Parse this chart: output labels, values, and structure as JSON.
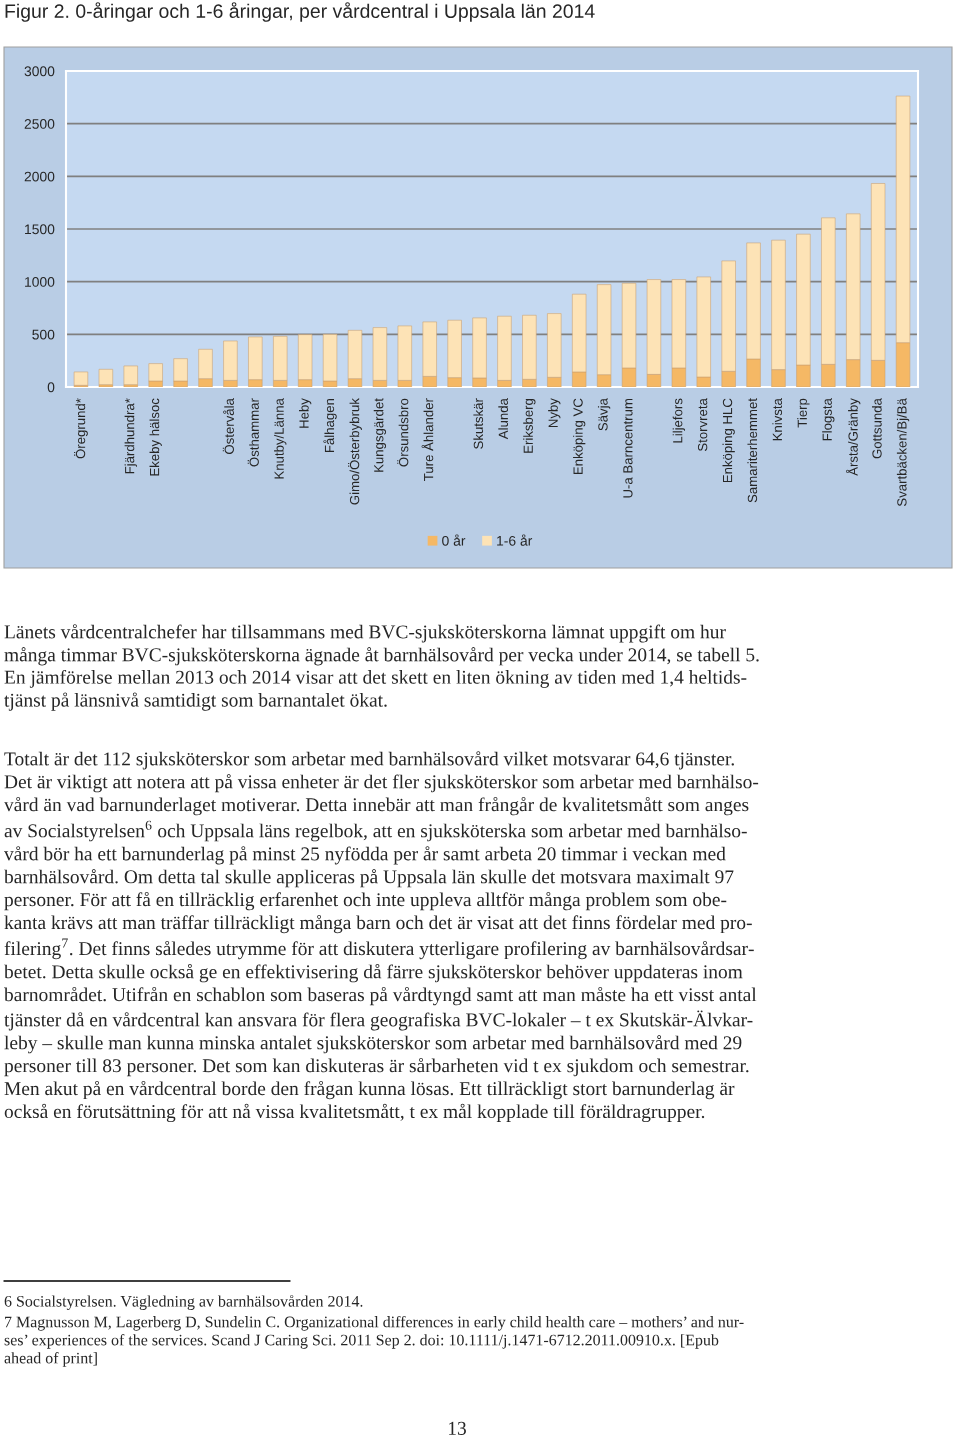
{
  "chart_data": {
    "type": "bar",
    "title": "Figur 2. 0-åringar och 1-6 åringar, per vårdcentral i Uppsala län 2014",
    "categories": [
      "Öregrund*",
      null,
      "Fjärdhundra*",
      "Ekeby hälsoc",
      null,
      null,
      "Östervåla",
      "Östhammar",
      "Knutby/Länna",
      "Heby",
      "Fålhagen",
      "Gimo/Österbybruk",
      "Kungsgärdet",
      "Örsundsbro",
      "Ture Åhlander",
      null,
      "Skutskär",
      "Alunda",
      "Eriksberg",
      "Nyby",
      "Enköping VC",
      "Sävja",
      "U-a Barncentrum",
      null,
      "Liljefors",
      "Storvreta",
      "Enköping HLC",
      "Samariterhemmet",
      "Knivsta",
      "Tierp",
      "Flogsta",
      "Årsta/Gränby",
      "Gottsunda",
      "Svartbäcken/Bj/Bä"
    ],
    "stacked": true,
    "series": [
      {
        "name": "0 år",
        "color": "#f5b865",
        "values": [
          16,
          22,
          22,
          57,
          57,
          79,
          63,
          70,
          63,
          70,
          57,
          79,
          63,
          63,
          101,
          89,
          86,
          63,
          73,
          92,
          143,
          117,
          181,
          120,
          181,
          95,
          149,
          266,
          165,
          209,
          215,
          260,
          253,
          421
        ]
      },
      {
        "name": "1-6 år",
        "color": "#fde3b6",
        "values": [
          127,
          146,
          178,
          165,
          212,
          279,
          374,
          405,
          418,
          427,
          443,
          459,
          501,
          517,
          517,
          545,
          570,
          609,
          608,
          605,
          738,
          855,
          804,
          900,
          839,
          950,
          1048,
          1102,
          1229,
          1242,
          1391,
          1384,
          1679,
          2341
        ]
      }
    ],
    "ylim": [
      0,
      3000
    ],
    "yticks": [
      0,
      500,
      1000,
      1500,
      2000,
      2500,
      3000
    ],
    "grid": "y",
    "legend": "bottom",
    "annotations": [
      "Länets vårdcentralchefer har tillsammans med BVC-sjuksköterskorna lämnat uppgift om hur\nmånga timmar BVC-sjuksköterskorna ägnade åt barnhälsovård per vecka under 2014, se tabell 5.\nEn jämförelse mellan 2013 och 2014 visar att det skett en liten ökning av tiden med 1,4 heltids-\ntjänst på länsnivå samtidigt som barnantalet ökat.",
      "Totalt är det 112 sjuksköterskor som arbetar med barnhälsovård vilket motsvarar 64,6 tjänster.\nDet är viktigt att notera att på vissa enheter är det fler sjuksköterskor som arbetar med barnhälso-\nvård än vad barnunderlaget motiverar. Detta innebär att man frångår de kvalitetsmått som anges\nav Socialstyrelsen$^{6}$ och Uppsala läns regelbok, att en sjuksköterska som arbetar med barnhälso-\nvård bör ha ett barnunderlag på minst 25 nyfödda per år samt arbeta 20 timmar i veckan med\nbarnhälsovård. Om detta tal skulle appliceras på Uppsala län skulle det motsvara maximalt 97\npersoner. För att få en tillräcklig erfarenhet och inte uppleva alltför många problem som obe-\nkanta krävs att man träffar tillräckligt många barn och det är visat att det finns fördelar med pro-\nfilering$^{7}$. Det finns således utrymme för att diskutera ytterligare profilering av barnhälsovårdsar-\nbetet. Detta skulle också ge en effektivisering då färre sjuksköterskor behöver uppdateras inom\nbarnområdet. Utifrån en schablon som baseras på vårdtyngd samt att man måste ha ett visst antal\ntjänster då en vårdcentral kan ansvara för flera geografiska BVC-lokaler – t ex Skutskär-Älvkar-\nleby – skulle man kunna minska antalet sjuksköterskor som arbetar med barnhälsovård med 29\npersoner till 83 personer. Det som kan diskuteras är sårbarheten vid t ex sjukdom och semestrar.\nMen akut på en vårdcentral borde den frågan kunna lösas. Ett tillräckligt stort barnunderlag är\nockså en förutsättning för att nå vissa kvalitetsmått, t ex mål kopplade till föräldragrupper.",
      "6 Socialstyrelsen. Vägledning av barnhälsovården 2014.",
      "7 Magnusson M, Lagerberg D, Sundelin C. Organizational differences in early child health care – mothers’ and nur-\nses’ experiences of the services. Scand J Caring Sci. 2011 Sep 2. doi: 10.1111/j.1471-6712.2011.00910.x. [Epub\nahead of print]",
      "13"
    ]
  }
}
